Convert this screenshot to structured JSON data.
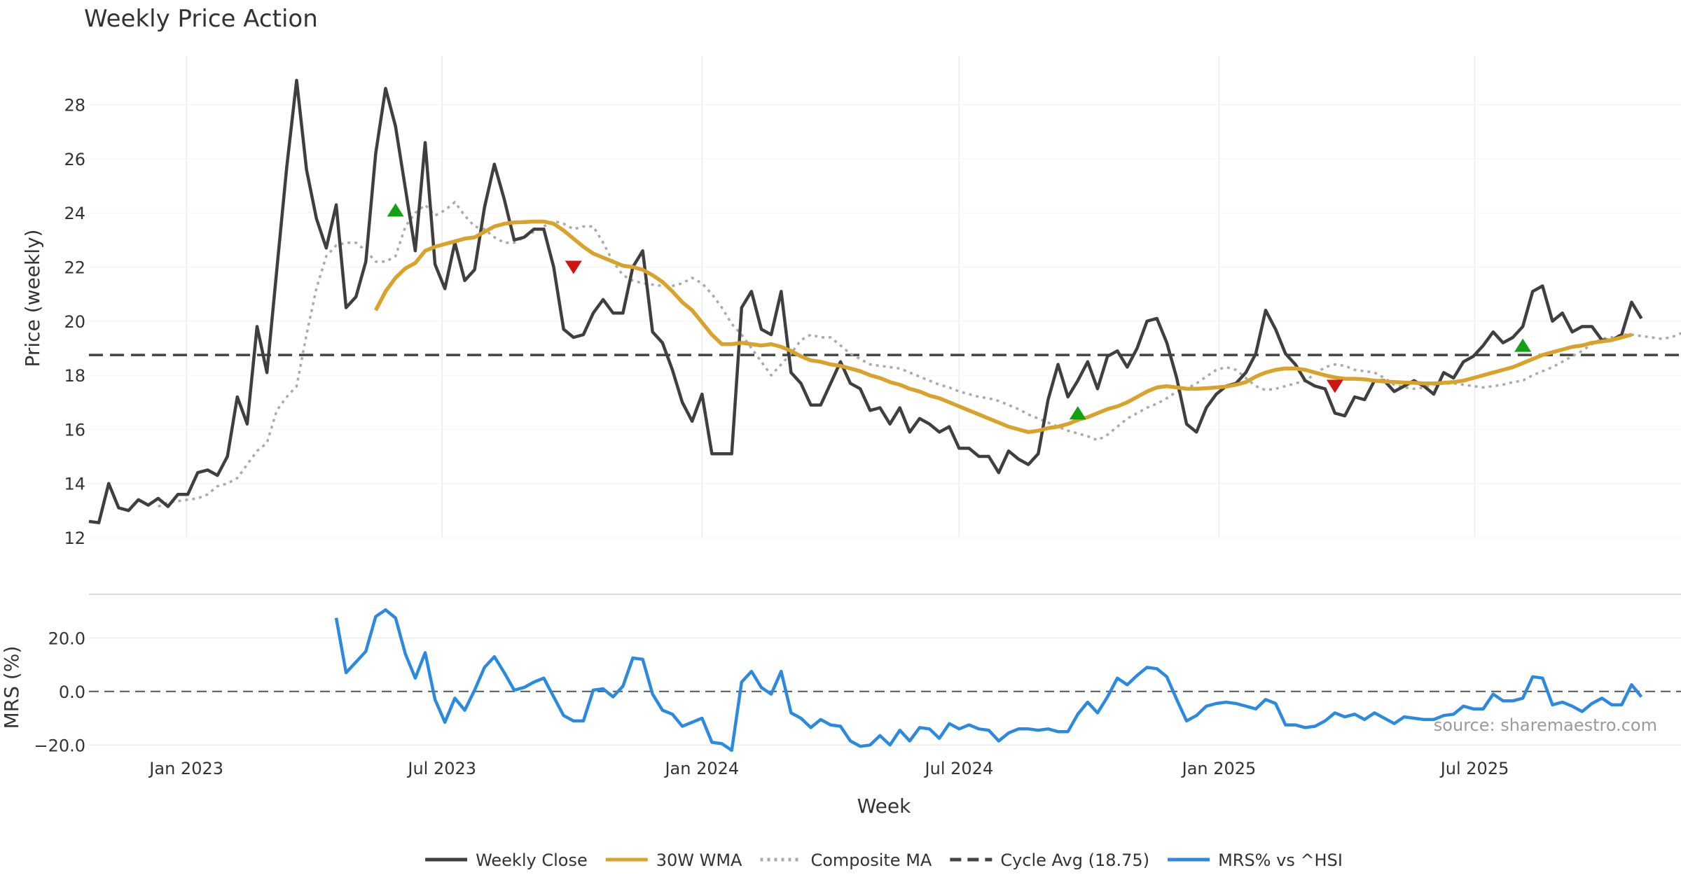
{
  "chart_data": [
    {
      "type": "line",
      "title": "Weekly Price Action",
      "ylabel": "Price (weekly)",
      "xlabel": "Week",
      "ylim": [
        12,
        29.8
      ],
      "yticks": [
        12,
        14,
        16,
        18,
        20,
        22,
        24,
        26,
        28
      ],
      "x_range": [
        "2022-10-24",
        "2025-11-24"
      ],
      "x_ticks": [
        {
          "date": "2023-01-01",
          "label": "Jan 2023"
        },
        {
          "date": "2023-07-01",
          "label": "Jul 2023"
        },
        {
          "date": "2024-01-01",
          "label": "Jan 2024"
        },
        {
          "date": "2024-07-01",
          "label": "Jul 2024"
        },
        {
          "date": "2025-01-01",
          "label": "Jan 2025"
        },
        {
          "date": "2025-07-01",
          "label": "Jul 2025"
        }
      ],
      "grid": true,
      "start_week": "2022-10-24",
      "series": [
        {
          "name": "Weekly Close",
          "color": "#3f3f3f",
          "start_index": 0,
          "values": [
            12.6,
            12.55,
            14.0,
            13.1,
            13.0,
            13.4,
            13.2,
            13.45,
            13.15,
            13.6,
            13.6,
            14.4,
            14.5,
            14.3,
            15.0,
            17.2,
            16.2,
            19.8,
            18.1,
            21.9,
            25.7,
            28.9,
            25.6,
            23.8,
            22.7,
            24.3,
            20.5,
            20.9,
            22.2,
            26.2,
            28.6,
            27.2,
            24.9,
            22.6,
            26.6,
            22.1,
            21.2,
            22.9,
            21.5,
            21.9,
            24.2,
            25.8,
            24.5,
            23.0,
            23.1,
            23.4,
            23.4,
            22.0,
            19.7,
            19.4,
            19.5,
            20.3,
            20.8,
            20.3,
            20.3,
            22.0,
            22.6,
            19.6,
            19.2,
            18.2,
            17.0,
            16.3,
            17.3,
            15.1,
            15.1,
            15.1,
            20.5,
            21.1,
            19.7,
            19.5,
            21.1,
            18.1,
            17.7,
            16.9,
            16.9,
            17.7,
            18.5,
            17.7,
            17.5,
            16.7,
            16.8,
            16.2,
            16.8,
            15.9,
            16.4,
            16.2,
            15.9,
            16.1,
            15.3,
            15.3,
            15.0,
            15.0,
            14.4,
            15.2,
            14.9,
            14.7,
            15.1,
            17.1,
            18.4,
            17.2,
            17.8,
            18.5,
            17.5,
            18.7,
            18.9,
            18.3,
            19.0,
            20.0,
            20.1,
            19.2,
            17.9,
            16.2,
            15.9,
            16.8,
            17.3,
            17.6,
            17.7,
            18.1,
            18.8,
            20.4,
            19.7,
            18.8,
            18.4,
            17.8,
            17.6,
            17.5,
            16.6,
            16.5,
            17.2,
            17.1,
            17.8,
            17.8,
            17.4,
            17.6,
            17.8,
            17.6,
            17.3,
            18.1,
            17.9,
            18.5,
            18.7,
            19.1,
            19.6,
            19.2,
            19.4,
            19.8,
            21.1,
            21.3,
            20.0,
            20.3,
            19.6,
            19.8,
            19.8,
            19.3,
            19.3,
            19.5,
            20.7,
            20.1
          ]
        },
        {
          "name": "30W WMA",
          "color": "#d9a22b",
          "start_index": 29,
          "values": [
            20.4,
            21.1,
            21.6,
            21.95,
            22.15,
            22.6,
            22.75,
            22.85,
            22.95,
            23.05,
            23.1,
            23.3,
            23.5,
            23.6,
            23.65,
            23.66,
            23.68,
            23.68,
            23.6,
            23.35,
            23.05,
            22.75,
            22.5,
            22.35,
            22.2,
            22.05,
            22.0,
            21.9,
            21.7,
            21.45,
            21.1,
            20.7,
            20.4,
            19.95,
            19.5,
            19.15,
            19.15,
            19.2,
            19.15,
            19.1,
            19.15,
            19.05,
            18.9,
            18.7,
            18.55,
            18.5,
            18.4,
            18.35,
            18.25,
            18.15,
            18.0,
            17.9,
            17.75,
            17.65,
            17.5,
            17.4,
            17.25,
            17.15,
            17.0,
            16.85,
            16.7,
            16.55,
            16.4,
            16.25,
            16.1,
            16.0,
            15.9,
            15.95,
            16.05,
            16.1,
            16.2,
            16.35,
            16.45,
            16.6,
            16.75,
            16.85,
            17.0,
            17.2,
            17.4,
            17.55,
            17.6,
            17.55,
            17.5,
            17.5,
            17.52,
            17.55,
            17.58,
            17.65,
            17.75,
            17.95,
            18.1,
            18.2,
            18.25,
            18.25,
            18.2,
            18.1,
            18.0,
            17.92,
            17.87,
            17.87,
            17.85,
            17.8,
            17.77,
            17.75,
            17.73,
            17.72,
            17.7,
            17.7,
            17.72,
            17.75,
            17.8,
            17.9,
            18.0,
            18.1,
            18.2,
            18.3,
            18.45,
            18.6,
            18.75,
            18.85,
            18.95,
            19.05,
            19.1,
            19.2,
            19.25,
            19.3,
            19.4,
            19.5
          ]
        },
        {
          "name": "Composite MA",
          "color": "#aaaaaa",
          "start_index": 7,
          "values": [
            13.15,
            13.3,
            13.35,
            13.4,
            13.45,
            13.6,
            13.9,
            14.0,
            14.2,
            14.7,
            15.2,
            15.5,
            16.7,
            17.2,
            17.6,
            19.5,
            21.2,
            22.4,
            22.8,
            22.9,
            22.9,
            22.6,
            22.2,
            22.2,
            22.4,
            23.5,
            24.0,
            24.3,
            23.9,
            24.1,
            24.4,
            23.9,
            23.5,
            23.4,
            23.1,
            22.9,
            22.9,
            23.1,
            23.3,
            23.5,
            23.7,
            23.6,
            23.4,
            23.5,
            23.5,
            22.9,
            22.2,
            21.7,
            21.5,
            21.4,
            21.35,
            21.3,
            21.3,
            21.4,
            21.6,
            21.4,
            21.0,
            20.5,
            19.9,
            19.5,
            19.0,
            18.5,
            18.0,
            18.4,
            18.8,
            19.3,
            19.5,
            19.4,
            19.4,
            19.1,
            18.8,
            18.6,
            18.4,
            18.35,
            18.3,
            18.25,
            18.1,
            17.95,
            17.8,
            17.65,
            17.55,
            17.4,
            17.3,
            17.2,
            17.15,
            17.05,
            16.9,
            16.75,
            16.55,
            16.4,
            16.25,
            16.1,
            15.95,
            15.85,
            15.75,
            15.6,
            15.8,
            16.1,
            16.4,
            16.6,
            16.8,
            16.95,
            17.15,
            17.4,
            17.5,
            17.7,
            17.95,
            18.2,
            18.3,
            18.2,
            17.9,
            17.6,
            17.45,
            17.5,
            17.6,
            17.7,
            17.8,
            18.05,
            18.3,
            18.4,
            18.35,
            18.2,
            18.15,
            18.1,
            17.9,
            17.65,
            17.55,
            17.5,
            17.55,
            17.65,
            17.7,
            17.7,
            17.65,
            17.6,
            17.55,
            17.6,
            17.65,
            17.75,
            17.8,
            18.0,
            18.15,
            18.3,
            18.5,
            18.7,
            18.9,
            19.15,
            19.35,
            19.4,
            19.5,
            19.5,
            19.45,
            19.4,
            19.35,
            19.4,
            19.55,
            19.6
          ]
        },
        {
          "name": "Cycle Avg (18.75)",
          "color": "#444444",
          "constant": 18.75
        }
      ],
      "signals": [
        {
          "type": "buy",
          "week_index": 31,
          "price": 24.1
        },
        {
          "type": "sell",
          "week_index": 49,
          "price": 22.0
        },
        {
          "type": "buy",
          "week_index": 100,
          "price": 16.6
        },
        {
          "type": "sell",
          "week_index": 126,
          "price": 17.6
        },
        {
          "type": "buy",
          "week_index": 145,
          "price": 19.1
        }
      ],
      "signal_colors": {
        "buy": "#14a014",
        "sell": "#d01414"
      }
    },
    {
      "type": "line",
      "ylabel": "MRS (%)",
      "ylim": [
        -21.5,
        35
      ],
      "yticks": [
        20.0,
        0.0,
        -20.0
      ],
      "ytick_labels": [
        "20.0",
        "0.0",
        "−20.0"
      ],
      "zero_line": 0,
      "annotation": "source: sharemaestro.com",
      "series": [
        {
          "name": "MRS% vs ^HSI",
          "color": "#2b8ae0",
          "start_index": 25,
          "values": [
            27.5,
            7.0,
            11.0,
            15.0,
            28.0,
            30.5,
            27.5,
            14.0,
            5.0,
            14.5,
            -3.0,
            -11.5,
            -2.5,
            -7.0,
            0.5,
            9.0,
            13.0,
            7.0,
            0.5,
            1.5,
            3.5,
            5.0,
            -2.0,
            -9.0,
            -11.0,
            -11.0,
            0.5,
            1.0,
            -2.0,
            2.0,
            12.5,
            12.0,
            -1.0,
            -7.0,
            -8.5,
            -13.0,
            -11.5,
            -10.0,
            -19.0,
            -19.5,
            -22.0,
            3.5,
            7.5,
            1.5,
            -1.0,
            7.5,
            -8.0,
            -10.0,
            -13.5,
            -10.5,
            -12.5,
            -13.0,
            -18.5,
            -20.5,
            -20.0,
            -16.5,
            -20.0,
            -14.5,
            -18.5,
            -13.5,
            -14.0,
            -17.5,
            -12.0,
            -14.0,
            -12.5,
            -14.0,
            -14.5,
            -18.5,
            -15.5,
            -14.0,
            -14.0,
            -14.5,
            -14.0,
            -15.0,
            -15.0,
            -8.5,
            -4.0,
            -8.0,
            -2.0,
            5.0,
            2.5,
            6.0,
            9.0,
            8.5,
            5.5,
            -3.0,
            -11.0,
            -9.0,
            -5.5,
            -4.5,
            -4.0,
            -4.5,
            -5.5,
            -6.5,
            -3.0,
            -4.5,
            -12.5,
            -12.5,
            -13.5,
            -13.0,
            -11.0,
            -8.0,
            -9.5,
            -8.5,
            -10.5,
            -8.0,
            -10.0,
            -12.0,
            -9.5,
            -10.0,
            -10.5,
            -10.5,
            -9.0,
            -8.5,
            -5.5,
            -6.5,
            -6.5,
            -1.0,
            -3.5,
            -3.5,
            -2.5,
            5.5,
            5.0,
            -5.0,
            -4.0,
            -5.5,
            -7.5,
            -4.5,
            -2.5,
            -5.0,
            -5.0,
            2.5,
            -2.0
          ]
        }
      ]
    }
  ],
  "legend": [
    {
      "label": "Weekly Close",
      "color": "#3f3f3f",
      "style": "solid"
    },
    {
      "label": "30W WMA",
      "color": "#d9a22b",
      "style": "solid"
    },
    {
      "label": "Composite MA",
      "color": "#aaaaaa",
      "style": "dotted"
    },
    {
      "label": "Cycle Avg (18.75)",
      "color": "#444444",
      "style": "dashed"
    },
    {
      "label": "MRS% vs ^HSI",
      "color": "#2b8ae0",
      "style": "solid"
    }
  ]
}
